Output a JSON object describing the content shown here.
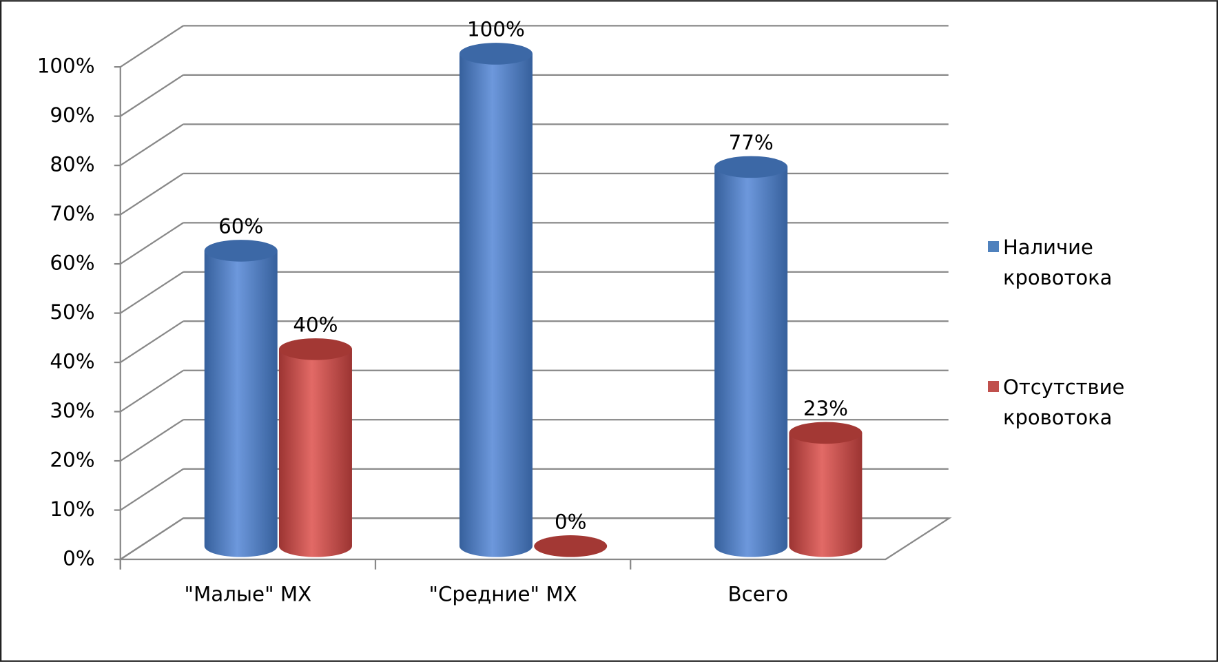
{
  "chart_data": {
    "type": "bar3d",
    "categories": [
      "\"Малые\" МХ",
      "\"Средние\" МХ",
      "Всего"
    ],
    "series": [
      {
        "name": "Наличие кровотока",
        "color": "#4f81bd",
        "values": [
          60,
          100,
          77
        ],
        "value_labels": [
          "60%",
          "100%",
          "77%"
        ]
      },
      {
        "name": "Отсутствие кровотока",
        "color": "#c0504d",
        "values": [
          40,
          0,
          23
        ],
        "value_labels": [
          "40%",
          "0%",
          "23%"
        ]
      }
    ],
    "ylim": [
      0,
      100
    ],
    "yticks": [
      {
        "value": 0,
        "label": "0%"
      },
      {
        "value": 10,
        "label": "10%"
      },
      {
        "value": 20,
        "label": "20%"
      },
      {
        "value": 30,
        "label": "30%"
      },
      {
        "value": 40,
        "label": "40%"
      },
      {
        "value": 50,
        "label": "50%"
      },
      {
        "value": 60,
        "label": "60%"
      },
      {
        "value": 70,
        "label": "70%"
      },
      {
        "value": 80,
        "label": "80%"
      },
      {
        "value": 90,
        "label": "90%"
      },
      {
        "value": 100,
        "label": "100%"
      }
    ],
    "grid": true,
    "legend": "right"
  }
}
